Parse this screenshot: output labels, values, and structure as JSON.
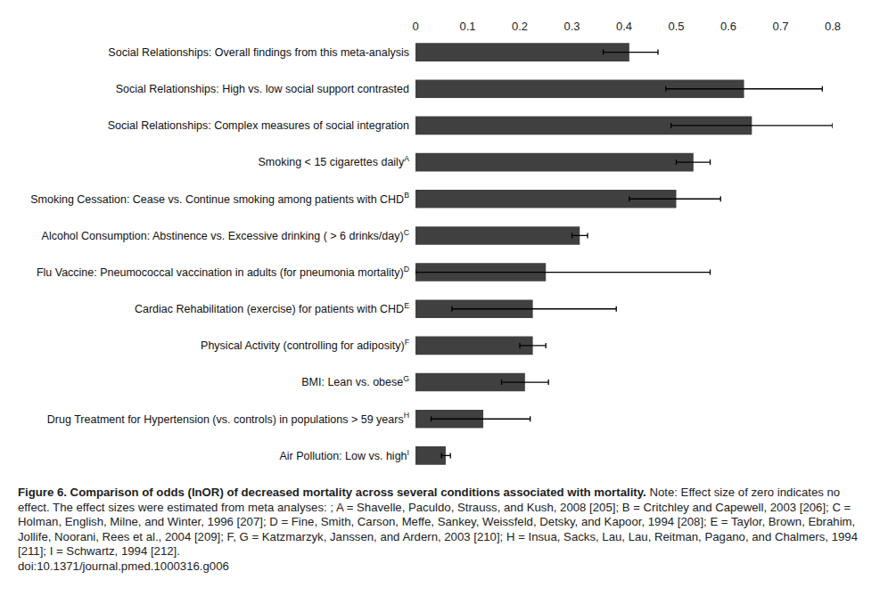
{
  "chart_data": {
    "type": "bar",
    "orientation": "horizontal",
    "categories": [
      "Social Relationships: Overall findings from this meta-analysis",
      "Social Relationships: High vs. low social support contrasted",
      "Social Relationships: Complex measures of social integration",
      "Smoking < 15 cigarettes daily",
      "Smoking Cessation: Cease vs. Continue smoking among patients with CHD",
      "Alcohol Consumption: Abstinence vs. Excessive drinking ( > 6 drinks/day)",
      "Flu Vaccine: Pneumococcal vaccination in adults (for pneumonia mortality)",
      "Cardiac Rehabilitation (exercise) for patients with CHD",
      "Physical Activity (controlling for adiposity)",
      "BMI: Lean vs. obese",
      "Drug Treatment for Hypertension (vs. controls) in populations > 59 years",
      "Air Pollution: Low vs. high"
    ],
    "category_notes": [
      null,
      null,
      null,
      "A",
      "B",
      "C",
      "D",
      "E",
      "F",
      "G",
      "H",
      "I"
    ],
    "values": [
      0.41,
      0.63,
      0.645,
      0.533,
      0.5,
      0.315,
      0.25,
      0.225,
      0.225,
      0.21,
      0.13,
      0.058
    ],
    "error_minus": [
      0.05,
      0.15,
      0.155,
      0.033,
      0.09,
      0.015,
      0.25,
      0.155,
      0.025,
      0.045,
      0.1,
      0.008
    ],
    "error_plus": [
      0.055,
      0.15,
      0.155,
      0.032,
      0.085,
      0.015,
      0.315,
      0.16,
      0.025,
      0.045,
      0.09,
      0.009
    ],
    "color": "#404040",
    "xlim": [
      0,
      0.8
    ],
    "xticks": [
      0,
      0.1,
      0.2,
      0.3,
      0.4,
      0.5,
      0.6,
      0.7,
      0.8
    ],
    "grid": false,
    "caption": {
      "title": "Figure 6. Comparison of odds (lnOR) of decreased mortality across several conditions associated with mortality.",
      "text": "Note: Effect size of zero indicates no effect. The effect sizes were estimated from meta analyses: ; A = Shavelle, Paculdo, Strauss, and Kush, 2008 [205]; B = Critchley and Capewell, 2003 [206]; C = Holman, English, Milne, and Winter, 1996 [207]; D = Fine, Smith, Carson, Meffe, Sankey, Weissfeld, Detsky, and Kapoor, 1994 [208]; E = Taylor, Brown, Ebrahim, Jollife, Noorani, Rees et al., 2004 [209]; F, G = Katzmarzyk, Janssen, and Ardern, 2003 [210]; H = Insua, Sacks, Lau, Lau, Reitman, Pagano, and Chalmers, 1994 [211]; I = Schwartz, 1994 [212].",
      "doi": "doi:10.1371/journal.pmed.1000316.g006"
    }
  }
}
